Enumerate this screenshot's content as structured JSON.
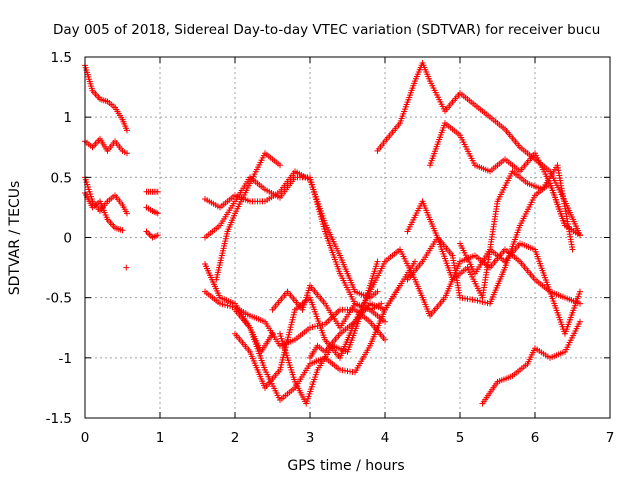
{
  "chart_data": {
    "type": "scatter",
    "title": "Day 005 of 2018, Sidereal Day-to-day VTEC variation (SDTVAR) for receiver bucu",
    "xlabel": "GPS time / hours",
    "ylabel": "SDTVAR / TECUs",
    "xlim": [
      0,
      7
    ],
    "ylim": [
      -1.5,
      1.5
    ],
    "xticks": [
      "0",
      "1",
      "2",
      "3",
      "4",
      "5",
      "6",
      "7"
    ],
    "yticks": [
      "-1.5",
      "-1",
      "-0.5",
      "0",
      "0.5",
      "1",
      "1.5"
    ],
    "grid": true,
    "marker": "+",
    "color": "#ff0000",
    "series": [
      {
        "x": [
          0.0,
          0.1,
          0.2,
          0.3,
          0.4,
          0.5,
          0.56
        ],
        "y": [
          1.43,
          1.22,
          1.15,
          1.13,
          1.08,
          0.98,
          0.89
        ]
      },
      {
        "x": [
          0.0,
          0.1,
          0.2,
          0.3,
          0.4,
          0.5,
          0.56
        ],
        "y": [
          0.8,
          0.75,
          0.82,
          0.72,
          0.8,
          0.72,
          0.7
        ]
      },
      {
        "x": [
          0.0,
          0.1,
          0.2,
          0.3,
          0.4,
          0.5,
          0.56
        ],
        "y": [
          0.5,
          0.3,
          0.22,
          0.3,
          0.35,
          0.27,
          0.2
        ]
      },
      {
        "x": [
          0.0,
          0.1,
          0.2,
          0.3,
          0.4,
          0.5
        ],
        "y": [
          0.37,
          0.25,
          0.3,
          0.15,
          0.08,
          0.06
        ]
      },
      {
        "x": [
          0.55
        ],
        "y": [
          -0.25
        ]
      },
      {
        "x": [
          0.82,
          0.9,
          0.97
        ],
        "y": [
          0.38,
          0.38,
          0.38
        ]
      },
      {
        "x": [
          0.82,
          0.9,
          0.97
        ],
        "y": [
          0.25,
          0.22,
          0.2
        ]
      },
      {
        "x": [
          0.82,
          0.9,
          0.97
        ],
        "y": [
          0.05,
          0.0,
          0.02
        ]
      },
      {
        "x": [
          1.6,
          1.8,
          2.0,
          2.2,
          2.4,
          2.6,
          2.8,
          3.0,
          3.2,
          3.4,
          3.6,
          3.8,
          3.9
        ],
        "y": [
          0.32,
          0.25,
          0.35,
          0.3,
          0.3,
          0.38,
          0.55,
          0.48,
          0.12,
          -0.15,
          -0.45,
          -0.5,
          -0.45
        ]
      },
      {
        "x": [
          1.6,
          1.8,
          2.0,
          2.2,
          2.4,
          2.6,
          2.8,
          3.0,
          3.2,
          3.4,
          3.6,
          3.8,
          3.95
        ],
        "y": [
          0.0,
          0.1,
          0.3,
          0.5,
          0.4,
          0.33,
          0.5,
          0.5,
          0.05,
          -0.3,
          -0.55,
          -0.6,
          -0.55
        ]
      },
      {
        "x": [
          1.6,
          1.8,
          2.0,
          2.2,
          2.35,
          2.5
        ],
        "y": [
          -0.22,
          -0.5,
          -0.55,
          -0.75,
          -0.95,
          -0.8
        ]
      },
      {
        "x": [
          1.6,
          1.8,
          2.0,
          2.2,
          2.4,
          2.6,
          2.8,
          3.0,
          3.2,
          3.4,
          3.6,
          3.8,
          4.0
        ],
        "y": [
          -0.45,
          -0.55,
          -0.58,
          -0.65,
          -0.7,
          -0.9,
          -0.85,
          -0.75,
          -0.72,
          -0.6,
          -0.6,
          -0.7,
          -0.85
        ]
      },
      {
        "x": [
          1.75,
          1.9,
          2.0,
          2.2,
          2.4,
          2.6
        ],
        "y": [
          -0.35,
          0.05,
          0.2,
          0.45,
          0.7,
          0.6
        ]
      },
      {
        "x": [
          2.0,
          2.2,
          2.4,
          2.6,
          2.8,
          3.0,
          3.2,
          3.4,
          3.6,
          3.8,
          4.0,
          4.2
        ],
        "y": [
          -0.6,
          -0.75,
          -1.1,
          -1.35,
          -1.25,
          -1.05,
          -1.0,
          -1.1,
          -1.12,
          -0.9,
          -0.6,
          -0.4
        ]
      },
      {
        "x": [
          2.0,
          2.2,
          2.4,
          2.6,
          2.8,
          3.0,
          3.2,
          3.4,
          3.6,
          3.8,
          4.0,
          4.2,
          4.4
        ],
        "y": [
          -0.8,
          -0.95,
          -1.25,
          -1.1,
          -0.6,
          -0.5,
          -0.85,
          -1.0,
          -0.7,
          -0.55,
          -0.6,
          -0.4,
          -0.2
        ]
      },
      {
        "x": [
          2.5,
          2.7,
          2.9,
          3.0,
          3.2,
          3.4,
          3.6,
          3.8,
          4.0
        ],
        "y": [
          -0.6,
          -0.45,
          -0.6,
          -0.4,
          -0.55,
          -0.75,
          -0.55,
          -0.6,
          -0.7
        ]
      },
      {
        "x": [
          2.6,
          2.8,
          2.95,
          3.1,
          3.3,
          3.5,
          3.7,
          3.9
        ],
        "y": [
          -0.8,
          -1.2,
          -1.38,
          -1.1,
          -0.9,
          -0.95,
          -0.6,
          -0.2
        ]
      },
      {
        "x": [
          3.0,
          3.1,
          3.2,
          3.4,
          3.6,
          3.8,
          4.0,
          4.2,
          4.4,
          4.6,
          4.8,
          5.0,
          5.2,
          5.4,
          5.6,
          5.8,
          6.0,
          6.2,
          6.4,
          6.6
        ],
        "y": [
          -1.0,
          -0.9,
          -0.95,
          -0.8,
          -0.7,
          -0.45,
          -0.2,
          -0.1,
          -0.35,
          -0.65,
          -0.5,
          -0.2,
          -0.15,
          -0.25,
          -0.1,
          -0.2,
          -0.35,
          -0.45,
          -0.5,
          -0.55
        ]
      },
      {
        "x": [
          3.9,
          4.0,
          4.2,
          4.4,
          4.5,
          4.6,
          4.8,
          5.0,
          5.2,
          5.4,
          5.6,
          5.8,
          6.0,
          6.2,
          6.4,
          6.6
        ],
        "y": [
          0.72,
          0.8,
          0.95,
          1.3,
          1.45,
          1.3,
          1.05,
          1.2,
          1.1,
          1.0,
          0.9,
          0.75,
          0.65,
          0.55,
          0.3,
          0.02
        ]
      },
      {
        "x": [
          4.6,
          4.8,
          5.0,
          5.2,
          5.4,
          5.6,
          5.8,
          6.0,
          6.2,
          6.4,
          6.6
        ],
        "y": [
          0.6,
          0.95,
          0.85,
          0.6,
          0.55,
          0.65,
          0.55,
          0.7,
          0.45,
          0.1,
          0.02
        ]
      },
      {
        "x": [
          4.3,
          4.5,
          4.7,
          4.9,
          5.0,
          5.2,
          5.4,
          5.6,
          5.8,
          6.0,
          6.2,
          6.4,
          6.6
        ],
        "y": [
          0.05,
          0.3,
          0.0,
          -0.15,
          -0.5,
          -0.52,
          -0.55,
          -0.25,
          0.1,
          0.35,
          0.45,
          0.1,
          0.02
        ]
      },
      {
        "x": [
          4.3,
          4.5,
          4.7,
          4.9,
          5.1,
          5.3,
          5.5,
          5.7,
          5.9,
          6.1,
          6.3,
          6.5
        ],
        "y": [
          -0.35,
          -0.2,
          0.0,
          -0.35,
          -0.25,
          -0.5,
          0.3,
          0.55,
          0.45,
          0.4,
          0.6,
          -0.1
        ]
      },
      {
        "x": [
          5.3,
          5.5,
          5.7,
          5.9,
          6.0,
          6.2,
          6.4,
          6.6
        ],
        "y": [
          -1.38,
          -1.2,
          -1.15,
          -1.05,
          -0.92,
          -1.0,
          -0.95,
          -0.7
        ]
      },
      {
        "x": [
          5.0,
          5.2,
          5.4,
          5.6,
          5.8,
          6.0,
          6.2,
          6.4,
          6.6
        ],
        "y": [
          -0.05,
          -0.3,
          -0.1,
          -0.2,
          -0.05,
          -0.1,
          -0.45,
          -0.8,
          -0.45
        ]
      }
    ]
  }
}
